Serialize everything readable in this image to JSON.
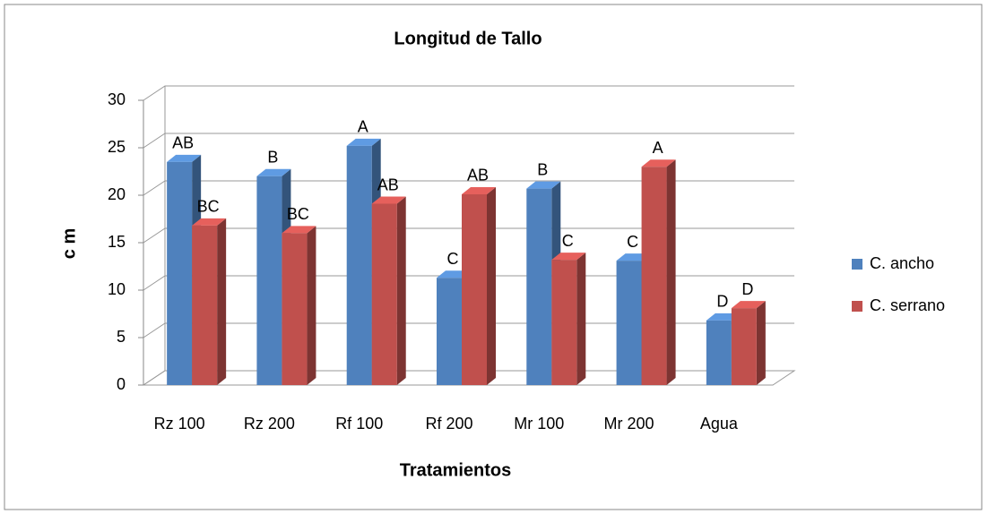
{
  "chart_data": {
    "type": "bar3d",
    "title": "Longitud de Tallo",
    "x_label": "Tratamientos",
    "y_label": "c m",
    "categories": [
      "Rz 100",
      "Rz 200",
      "Rf 100",
      "Rf 200",
      "Mr 100",
      "Mr 200",
      "Agua"
    ],
    "series": [
      {
        "name": "C. ancho",
        "color": "#4f81bd",
        "values": [
          23.5,
          22,
          25.2,
          11.3,
          20.7,
          13.1,
          6.8
        ],
        "letters": [
          "AB",
          "B",
          "A",
          "C",
          "B",
          "C",
          "D"
        ]
      },
      {
        "name": "C. serrano",
        "color": "#c0504d",
        "values": [
          16.8,
          16,
          19.1,
          20.1,
          13.2,
          23,
          8.1
        ],
        "letters": [
          "BC",
          "BC",
          "AB",
          "AB",
          "C",
          "A",
          "D"
        ]
      }
    ],
    "ylim": [
      0,
      30
    ],
    "yticks": [
      0,
      5,
      10,
      15,
      20,
      25,
      30
    ],
    "grid": true,
    "legend": "right"
  }
}
